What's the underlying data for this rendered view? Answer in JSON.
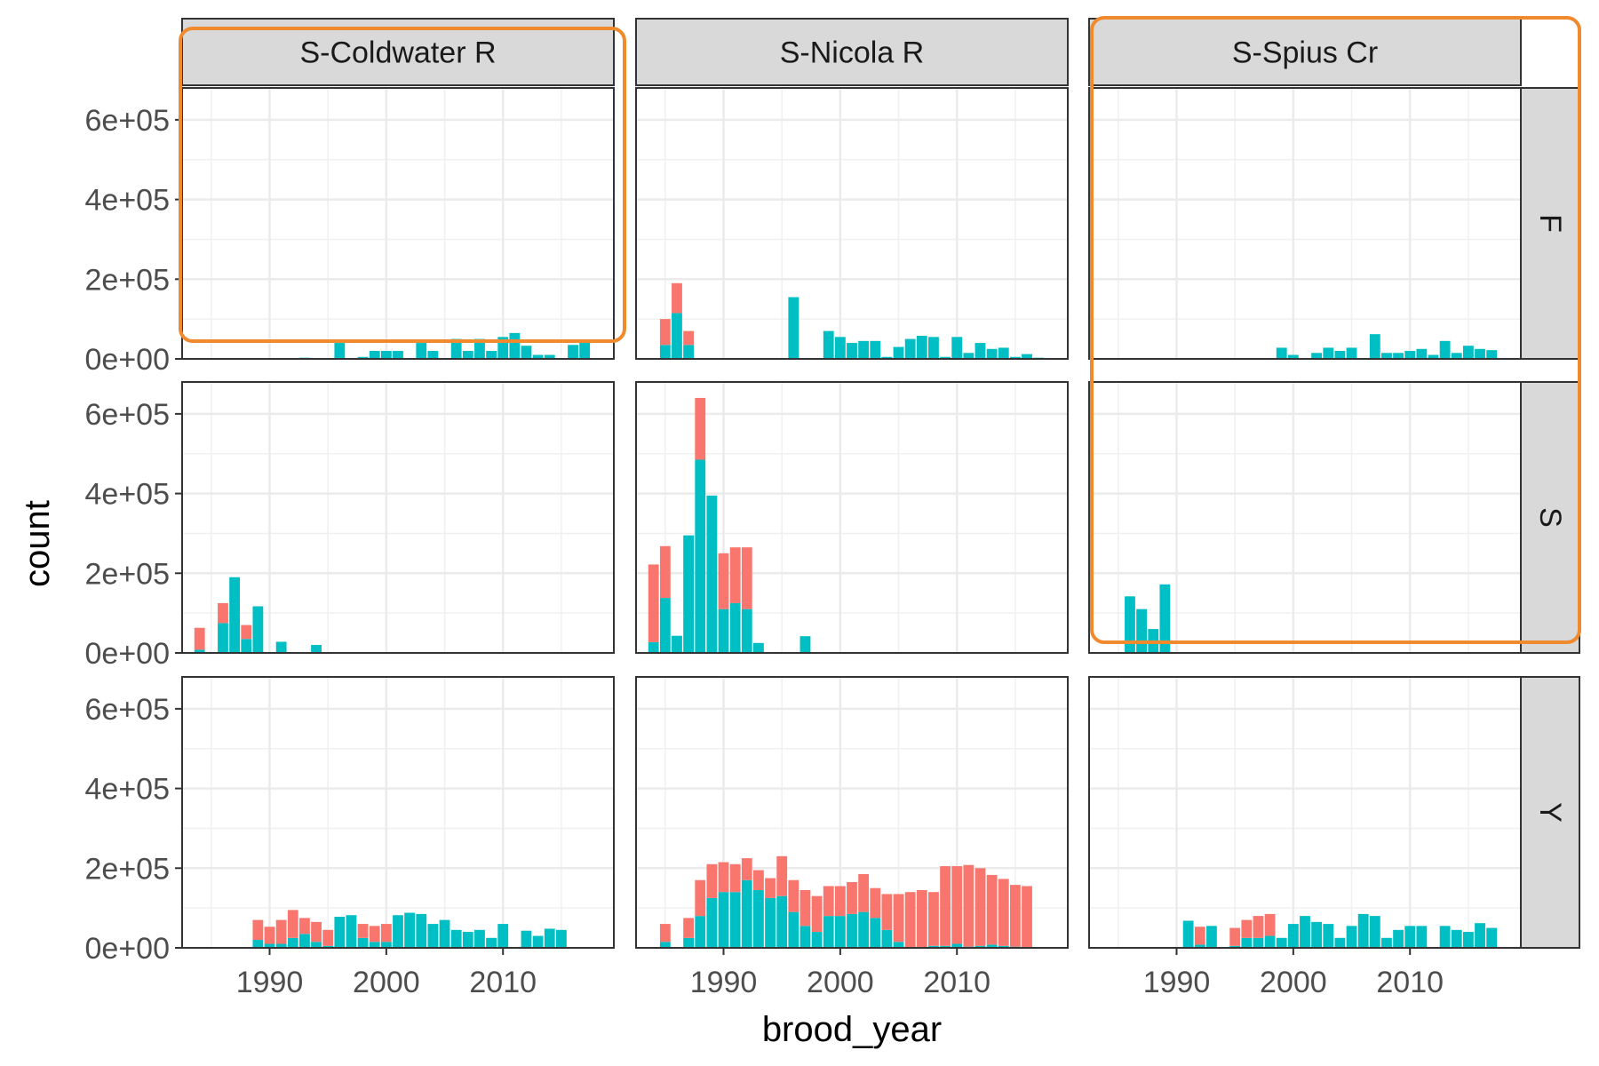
{
  "chart_data": {
    "type": "bar",
    "stacked": true,
    "facets": {
      "columns": [
        "S-Coldwater R",
        "S-Nicola R",
        "S-Spius Cr"
      ],
      "rows": [
        "F",
        "S",
        "Y"
      ]
    },
    "xlabel": "brood_year",
    "ylabel": "count",
    "xlim": [
      1982.5,
      2019.5
    ],
    "ylim": [
      0,
      680000
    ],
    "x_ticks": [
      1990,
      2000,
      2010
    ],
    "x_tick_labels": [
      "1990",
      "2000",
      "2010"
    ],
    "y_ticks": [
      0,
      200000,
      400000,
      600000
    ],
    "y_tick_labels": [
      "0e+00",
      "2e+05",
      "4e+05",
      "6e+05"
    ],
    "grid": true,
    "series_colors": {
      "red": "#F8766D",
      "teal": "#00BFC4"
    },
    "panels": [
      {
        "col": 0,
        "row": 0,
        "bars": [
          [
            1993,
            0,
            3000
          ],
          [
            1996,
            0,
            40000
          ],
          [
            1998,
            0,
            5000
          ],
          [
            1999,
            0,
            20000
          ],
          [
            2000,
            0,
            20000
          ],
          [
            2001,
            0,
            20000
          ],
          [
            2003,
            0,
            40000
          ],
          [
            2004,
            0,
            20000
          ],
          [
            2006,
            0,
            50000
          ],
          [
            2007,
            0,
            20000
          ],
          [
            2008,
            0,
            50000
          ],
          [
            2009,
            0,
            20000
          ],
          [
            2010,
            0,
            55000
          ],
          [
            2011,
            0,
            65000
          ],
          [
            2012,
            0,
            33000
          ],
          [
            2013,
            0,
            10000
          ],
          [
            2014,
            0,
            10000
          ],
          [
            2016,
            0,
            35000
          ],
          [
            2017,
            0,
            43000
          ]
        ]
      },
      {
        "col": 1,
        "row": 0,
        "bars": [
          [
            1985,
            65000,
            35000
          ],
          [
            1986,
            75000,
            115000
          ],
          [
            1987,
            35000,
            35000
          ],
          [
            1996,
            0,
            155000
          ],
          [
            1999,
            0,
            70000
          ],
          [
            2000,
            0,
            55000
          ],
          [
            2001,
            0,
            40000
          ],
          [
            2002,
            0,
            45000
          ],
          [
            2003,
            0,
            45000
          ],
          [
            2004,
            0,
            5000
          ],
          [
            2005,
            0,
            30000
          ],
          [
            2006,
            0,
            50000
          ],
          [
            2007,
            0,
            58000
          ],
          [
            2008,
            0,
            55000
          ],
          [
            2009,
            0,
            5000
          ],
          [
            2010,
            0,
            55000
          ],
          [
            2011,
            0,
            15000
          ],
          [
            2012,
            0,
            40000
          ],
          [
            2013,
            0,
            25000
          ],
          [
            2014,
            0,
            28000
          ],
          [
            2015,
            0,
            5000
          ],
          [
            2016,
            0,
            12000
          ],
          [
            2017,
            0,
            3000
          ]
        ]
      },
      {
        "col": 2,
        "row": 0,
        "bars": [
          [
            1999,
            0,
            28000
          ],
          [
            2000,
            0,
            10000
          ],
          [
            2002,
            0,
            15000
          ],
          [
            2003,
            0,
            28000
          ],
          [
            2004,
            0,
            20000
          ],
          [
            2005,
            0,
            28000
          ],
          [
            2007,
            0,
            62000
          ],
          [
            2008,
            0,
            15000
          ],
          [
            2009,
            0,
            15000
          ],
          [
            2010,
            0,
            20000
          ],
          [
            2011,
            0,
            25000
          ],
          [
            2012,
            0,
            10000
          ],
          [
            2013,
            0,
            45000
          ],
          [
            2014,
            0,
            15000
          ],
          [
            2015,
            0,
            33000
          ],
          [
            2016,
            0,
            25000
          ],
          [
            2017,
            0,
            22000
          ]
        ]
      },
      {
        "col": 0,
        "row": 1,
        "bars": [
          [
            1984,
            55000,
            8000
          ],
          [
            1986,
            50000,
            75000
          ],
          [
            1987,
            0,
            190000
          ],
          [
            1988,
            35000,
            35000
          ],
          [
            1989,
            0,
            117000
          ],
          [
            1991,
            0,
            28000
          ],
          [
            1994,
            0,
            20000
          ]
        ]
      },
      {
        "col": 1,
        "row": 1,
        "bars": [
          [
            1984,
            195000,
            27000
          ],
          [
            1985,
            130000,
            138000
          ],
          [
            1986,
            0,
            43000
          ],
          [
            1987,
            0,
            295000
          ],
          [
            1988,
            155000,
            485000
          ],
          [
            1989,
            0,
            395000
          ],
          [
            1990,
            140000,
            110000
          ],
          [
            1991,
            140000,
            125000
          ],
          [
            1992,
            155000,
            110000
          ],
          [
            1993,
            0,
            25000
          ],
          [
            1997,
            0,
            42000
          ]
        ]
      },
      {
        "col": 2,
        "row": 1,
        "bars": [
          [
            1986,
            0,
            142000
          ],
          [
            1987,
            0,
            110000
          ],
          [
            1988,
            0,
            60000
          ],
          [
            1989,
            0,
            172000
          ]
        ]
      },
      {
        "col": 0,
        "row": 2,
        "bars": [
          [
            1989,
            50000,
            20000
          ],
          [
            1990,
            43000,
            10000
          ],
          [
            1991,
            60000,
            10000
          ],
          [
            1992,
            70000,
            25000
          ],
          [
            1993,
            40000,
            35000
          ],
          [
            1994,
            50000,
            15000
          ],
          [
            1995,
            40000,
            5000
          ],
          [
            1996,
            0,
            78000
          ],
          [
            1997,
            0,
            82000
          ],
          [
            1998,
            35000,
            25000
          ],
          [
            1999,
            40000,
            15000
          ],
          [
            2000,
            45000,
            15000
          ],
          [
            2001,
            0,
            82000
          ],
          [
            2002,
            0,
            88000
          ],
          [
            2003,
            0,
            85000
          ],
          [
            2004,
            0,
            60000
          ],
          [
            2005,
            0,
            70000
          ],
          [
            2006,
            0,
            45000
          ],
          [
            2007,
            0,
            40000
          ],
          [
            2008,
            0,
            45000
          ],
          [
            2009,
            0,
            25000
          ],
          [
            2010,
            0,
            60000
          ],
          [
            2012,
            0,
            43000
          ],
          [
            2013,
            0,
            30000
          ],
          [
            2014,
            0,
            48000
          ],
          [
            2015,
            0,
            45000
          ]
        ]
      },
      {
        "col": 1,
        "row": 2,
        "bars": [
          [
            1985,
            45000,
            15000
          ],
          [
            1987,
            50000,
            25000
          ],
          [
            1988,
            90000,
            80000
          ],
          [
            1989,
            85000,
            125000
          ],
          [
            1990,
            75000,
            140000
          ],
          [
            1991,
            70000,
            140000
          ],
          [
            1992,
            55000,
            170000
          ],
          [
            1993,
            50000,
            145000
          ],
          [
            1994,
            50000,
            125000
          ],
          [
            1995,
            100000,
            130000
          ],
          [
            1996,
            80000,
            90000
          ],
          [
            1997,
            90000,
            55000
          ],
          [
            1998,
            90000,
            40000
          ],
          [
            1999,
            75000,
            80000
          ],
          [
            2000,
            75000,
            80000
          ],
          [
            2001,
            80000,
            85000
          ],
          [
            2002,
            95000,
            90000
          ],
          [
            2003,
            75000,
            75000
          ],
          [
            2004,
            90000,
            45000
          ],
          [
            2005,
            120000,
            15000
          ],
          [
            2006,
            140000,
            0
          ],
          [
            2007,
            145000,
            0
          ],
          [
            2008,
            135000,
            5000
          ],
          [
            2009,
            200000,
            5000
          ],
          [
            2010,
            195000,
            10000
          ],
          [
            2011,
            205000,
            3000
          ],
          [
            2012,
            195000,
            5000
          ],
          [
            2013,
            175000,
            8000
          ],
          [
            2014,
            168000,
            5000
          ],
          [
            2015,
            155000,
            3000
          ],
          [
            2016,
            155000,
            0
          ]
        ]
      },
      {
        "col": 2,
        "row": 2,
        "bars": [
          [
            1991,
            0,
            68000
          ],
          [
            1992,
            45000,
            8000
          ],
          [
            1993,
            0,
            55000
          ],
          [
            1995,
            45000,
            5000
          ],
          [
            1996,
            45000,
            25000
          ],
          [
            1997,
            55000,
            25000
          ],
          [
            1998,
            55000,
            30000
          ],
          [
            1999,
            0,
            25000
          ],
          [
            2000,
            0,
            60000
          ],
          [
            2001,
            0,
            80000
          ],
          [
            2002,
            0,
            65000
          ],
          [
            2003,
            0,
            60000
          ],
          [
            2004,
            0,
            25000
          ],
          [
            2005,
            0,
            55000
          ],
          [
            2006,
            0,
            85000
          ],
          [
            2007,
            0,
            80000
          ],
          [
            2008,
            0,
            25000
          ],
          [
            2009,
            0,
            45000
          ],
          [
            2010,
            0,
            55000
          ],
          [
            2011,
            0,
            55000
          ],
          [
            2013,
            0,
            55000
          ],
          [
            2014,
            0,
            45000
          ],
          [
            2015,
            0,
            40000
          ],
          [
            2016,
            0,
            62000
          ],
          [
            2017,
            0,
            50000
          ]
        ]
      }
    ],
    "highlight_color": "#F08A2E",
    "highlights": [
      {
        "panel_col": 0,
        "panel_row": 0,
        "target": "S-Coldwater R, row F"
      },
      {
        "panel_col": 2,
        "panel_row": 1,
        "target": "S-Spius Cr, rows F and S"
      }
    ]
  }
}
